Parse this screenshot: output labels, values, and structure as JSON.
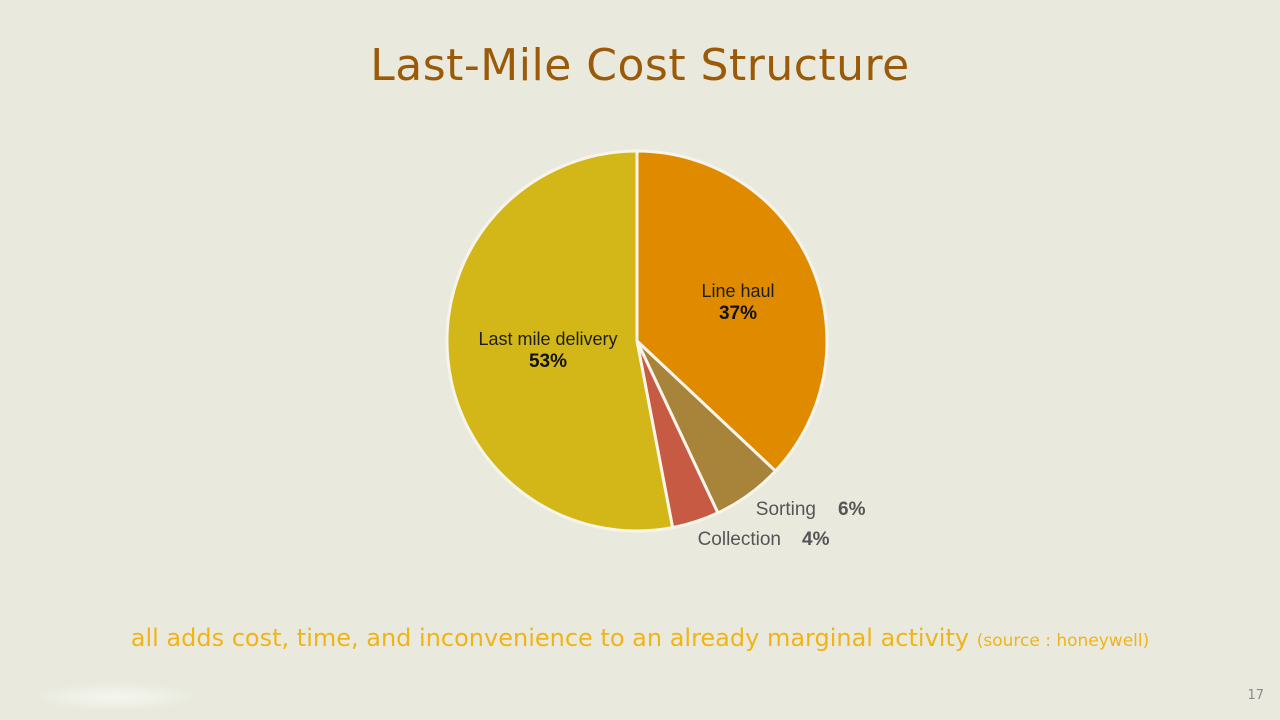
{
  "slide": {
    "title": "Last-Mile Cost Structure",
    "caption_main": "all adds cost, time, and inconvenience to an already marginal activity",
    "caption_source": "(source : honeywell)",
    "page_number": "17"
  },
  "colors": {
    "background": "#e9eadd",
    "title": "#9a5a07",
    "caption": "#f0b418",
    "slice_border": "#f7f4ea"
  },
  "chart_data": {
    "type": "pie",
    "title": "Last-Mile Cost Structure",
    "start": "12 o'clock",
    "direction": "clockwise",
    "slices": [
      {
        "id": "line-haul",
        "label": "Line haul",
        "value": 37,
        "value_label": "37%",
        "color": "#e08a00",
        "label_position": "inside"
      },
      {
        "id": "sorting",
        "label": "Sorting",
        "value": 6,
        "value_label": "6%",
        "color": "#a8833a",
        "label_position": "outside"
      },
      {
        "id": "collection",
        "label": "Collection",
        "value": 4,
        "value_label": "4%",
        "color": "#c75a43",
        "label_position": "outside"
      },
      {
        "id": "last-mile-delivery",
        "label": "Last mile delivery",
        "value": 53,
        "value_label": "53%",
        "color": "#d3b718",
        "label_position": "inside"
      }
    ]
  }
}
